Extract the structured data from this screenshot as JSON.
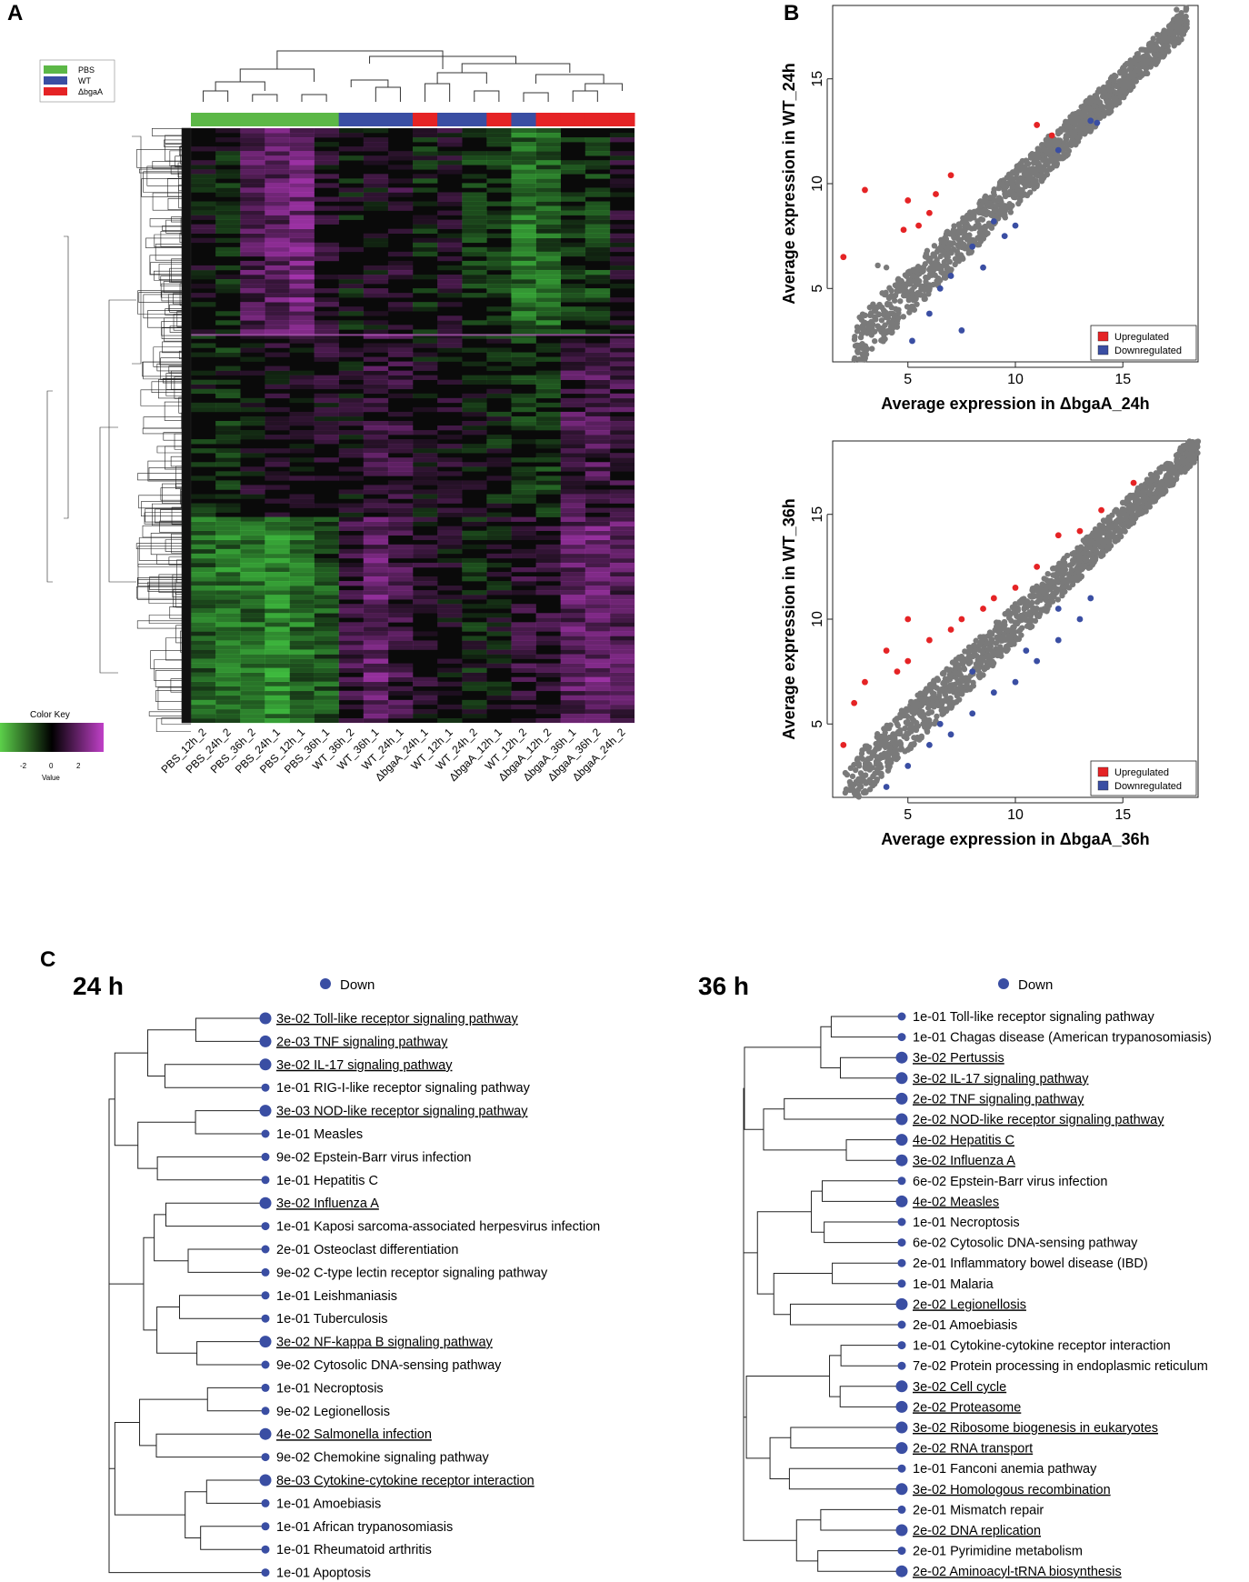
{
  "panels": {
    "a": "A",
    "b": "B",
    "c": "C"
  },
  "panel_a": {
    "legend": [
      {
        "label": "PBS",
        "color": "#5cb847"
      },
      {
        "label": "WT",
        "color": "#3a4ea3"
      },
      {
        "label": "ΔbgaA",
        "color": "#e52325"
      }
    ],
    "color_key": {
      "title": "Color Key",
      "value_label": "Value",
      "ticks": [
        "-2",
        "0",
        "2"
      ]
    },
    "samples": [
      "PBS_12h_2",
      "PBS_24h_2",
      "PBS_36h_2",
      "PBS_24h_1",
      "PBS_12h_1",
      "PBS_36h_1",
      "WT_36h_2",
      "WT_36h_1",
      "WT_24h_1",
      "ΔbgaA_24h_1",
      "WT_12h_1",
      "WT_24h_2",
      "ΔbgaA_12h_1",
      "WT_12h_2",
      "ΔbgaA_12h_2",
      "ΔbgaA_36h_1",
      "ΔbgaA_36h_2",
      "ΔbgaA_24h_2"
    ],
    "groups": [
      "PBS",
      "PBS",
      "PBS",
      "PBS",
      "PBS",
      "PBS",
      "WT",
      "WT",
      "WT",
      "ΔbgaA",
      "WT",
      "WT",
      "ΔbgaA",
      "WT",
      "ΔbgaA",
      "ΔbgaA",
      "ΔbgaA",
      "ΔbgaA"
    ]
  },
  "chart_data": [
    {
      "type": "scatter",
      "title": "",
      "xlabel": "Average expression in ΔbgaA_24h",
      "ylabel": "Average expression in WT_24h",
      "xlim": [
        1.5,
        18.5
      ],
      "ylim": [
        1.5,
        18.5
      ],
      "xticks": [
        "5",
        "10",
        "15"
      ],
      "yticks": [
        "5",
        "10",
        "15"
      ],
      "legend": [
        "Upregulated",
        "Downregulated"
      ],
      "legend_colors": [
        "#e52325",
        "#3a4ea3"
      ],
      "series": [
        {
          "name": "Upregulated",
          "points": [
            [
              2,
              6.5
            ],
            [
              3,
              9.7
            ],
            [
              5,
              9.2
            ],
            [
              6,
              8.6
            ],
            [
              6.3,
              9.5
            ],
            [
              5.5,
              8
            ],
            [
              7,
              10.4
            ],
            [
              11,
              12.8
            ],
            [
              11.7,
              12.3
            ],
            [
              4.8,
              7.8
            ]
          ]
        },
        {
          "name": "Downregulated",
          "points": [
            [
              5.2,
              2.5
            ],
            [
              7.5,
              3
            ],
            [
              6,
              3.8
            ],
            [
              7,
              5.6
            ],
            [
              8,
              7
            ],
            [
              9,
              8.2
            ],
            [
              10,
              8
            ],
            [
              12,
              11.6
            ],
            [
              13.5,
              13
            ],
            [
              13.8,
              12.9
            ],
            [
              8.5,
              6
            ],
            [
              9.5,
              7.5
            ],
            [
              6.5,
              5
            ]
          ]
        },
        {
          "name": "Background",
          "band": [
            [
              2.5,
              3.5
            ],
            [
              18,
              18
            ]
          ],
          "extremes": [
            [
              17.5,
              18.3
            ],
            [
              17,
              16.8
            ],
            [
              16.5,
              16.4
            ],
            [
              16.3,
              16.7
            ],
            [
              4,
              6
            ],
            [
              3.6,
              6.1
            ]
          ]
        }
      ]
    },
    {
      "type": "scatter",
      "title": "",
      "xlabel": "Average expression in ΔbgaA_36h",
      "ylabel": "Average expression in WT_36h",
      "xlim": [
        1.5,
        18.5
      ],
      "ylim": [
        1.5,
        18.5
      ],
      "xticks": [
        "5",
        "10",
        "15"
      ],
      "yticks": [
        "5",
        "10",
        "15"
      ],
      "legend": [
        "Upregulated",
        "Downregulated"
      ],
      "legend_colors": [
        "#e52325",
        "#3a4ea3"
      ],
      "series": [
        {
          "name": "Upregulated",
          "points": [
            [
              2,
              4
            ],
            [
              2.5,
              6
            ],
            [
              3,
              7
            ],
            [
              4,
              8.5
            ],
            [
              5,
              8
            ],
            [
              6,
              9
            ],
            [
              7,
              9.5
            ],
            [
              7.5,
              10
            ],
            [
              8.5,
              10.5
            ],
            [
              9,
              11
            ],
            [
              10,
              11.5
            ],
            [
              11,
              12.5
            ],
            [
              12,
              14
            ],
            [
              13,
              14.2
            ],
            [
              14,
              15.2
            ],
            [
              15.5,
              16.5
            ],
            [
              5,
              10
            ],
            [
              4.5,
              7.5
            ]
          ]
        },
        {
          "name": "Downregulated",
          "points": [
            [
              4,
              2
            ],
            [
              5,
              3
            ],
            [
              6,
              4
            ],
            [
              7,
              4.5
            ],
            [
              8,
              5.5
            ],
            [
              9,
              6.5
            ],
            [
              10,
              7
            ],
            [
              11,
              8
            ],
            [
              12,
              9
            ],
            [
              13,
              10
            ],
            [
              13.5,
              11
            ],
            [
              12,
              10.5
            ],
            [
              8,
              7.5
            ],
            [
              6.5,
              5
            ],
            [
              10.5,
              8.5
            ]
          ]
        },
        {
          "name": "Background",
          "band": [
            [
              2,
              3
            ],
            [
              18.5,
              18.5
            ]
          ],
          "extremes": [
            [
              18.3,
              18.3
            ],
            [
              17.5,
              17.5
            ],
            [
              16.5,
              16.8
            ],
            [
              16.3,
              16.9
            ]
          ]
        }
      ]
    }
  ],
  "panel_c": {
    "legend_label": "Down",
    "left": {
      "title": "24 h",
      "items": [
        {
          "label": "3e-02 Toll-like receptor signaling pathway",
          "big": true,
          "underline": true
        },
        {
          "label": "2e-03 TNF signaling pathway",
          "big": true,
          "underline": true
        },
        {
          "label": "3e-02 IL-17 signaling pathway",
          "big": true,
          "underline": true
        },
        {
          "label": "1e-01 RIG-I-like receptor signaling pathway",
          "big": false,
          "underline": false
        },
        {
          "label": "3e-03 NOD-like receptor signaling pathway",
          "big": true,
          "underline": true
        },
        {
          "label": "1e-01 Measles",
          "big": false,
          "underline": false
        },
        {
          "label": "9e-02 Epstein-Barr virus infection",
          "big": false,
          "underline": false
        },
        {
          "label": "1e-01 Hepatitis C",
          "big": false,
          "underline": false
        },
        {
          "label": "3e-02 Influenza A",
          "big": true,
          "underline": true
        },
        {
          "label": "1e-01 Kaposi sarcoma-associated herpesvirus infection",
          "big": false,
          "underline": false
        },
        {
          "label": "2e-01 Osteoclast differentiation",
          "big": false,
          "underline": false
        },
        {
          "label": "9e-02 C-type lectin receptor signaling pathway",
          "big": false,
          "underline": false
        },
        {
          "label": "1e-01 Leishmaniasis",
          "big": false,
          "underline": false
        },
        {
          "label": "1e-01 Tuberculosis",
          "big": false,
          "underline": false
        },
        {
          "label": "3e-02 NF-kappa B signaling pathway",
          "big": true,
          "underline": true
        },
        {
          "label": "9e-02 Cytosolic DNA-sensing pathway",
          "big": false,
          "underline": false
        },
        {
          "label": "1e-01 Necroptosis",
          "big": false,
          "underline": false
        },
        {
          "label": "9e-02 Legionellosis",
          "big": false,
          "underline": false
        },
        {
          "label": "4e-02 Salmonella infection",
          "big": true,
          "underline": true
        },
        {
          "label": "9e-02 Chemokine signaling pathway",
          "big": false,
          "underline": false
        },
        {
          "label": "8e-03 Cytokine-cytokine receptor interaction",
          "big": true,
          "underline": true
        },
        {
          "label": "1e-01 Amoebiasis",
          "big": false,
          "underline": false
        },
        {
          "label": "1e-01 African trypanosomiasis",
          "big": false,
          "underline": false
        },
        {
          "label": "1e-01 Rheumatoid arthritis",
          "big": false,
          "underline": false
        },
        {
          "label": "1e-01 Apoptosis",
          "big": false,
          "underline": false
        }
      ]
    },
    "right": {
      "title": "36 h",
      "items": [
        {
          "label": "1e-01 Toll-like receptor signaling pathway",
          "big": false,
          "underline": false
        },
        {
          "label": "1e-01 Chagas disease (American trypanosomiasis)",
          "big": false,
          "underline": false
        },
        {
          "label": "3e-02 Pertussis",
          "big": true,
          "underline": true
        },
        {
          "label": "3e-02 IL-17 signaling pathway",
          "big": true,
          "underline": true
        },
        {
          "label": "2e-02 TNF signaling pathway",
          "big": true,
          "underline": true
        },
        {
          "label": "2e-02 NOD-like receptor signaling pathway",
          "big": true,
          "underline": true
        },
        {
          "label": "4e-02 Hepatitis C",
          "big": true,
          "underline": true
        },
        {
          "label": "3e-02 Influenza A",
          "big": true,
          "underline": true
        },
        {
          "label": "6e-02 Epstein-Barr virus infection",
          "big": false,
          "underline": false
        },
        {
          "label": "4e-02 Measles",
          "big": true,
          "underline": true
        },
        {
          "label": "1e-01 Necroptosis",
          "big": false,
          "underline": false
        },
        {
          "label": "6e-02 Cytosolic DNA-sensing pathway",
          "big": false,
          "underline": false
        },
        {
          "label": "2e-01 Inflammatory bowel disease (IBD)",
          "big": false,
          "underline": false
        },
        {
          "label": "1e-01 Malaria",
          "big": false,
          "underline": false
        },
        {
          "label": "2e-02 Legionellosis",
          "big": true,
          "underline": true
        },
        {
          "label": "2e-01 Amoebiasis",
          "big": false,
          "underline": false
        },
        {
          "label": "1e-01 Cytokine-cytokine receptor interaction",
          "big": false,
          "underline": false
        },
        {
          "label": "7e-02 Protein processing in endoplasmic reticulum",
          "big": false,
          "underline": false
        },
        {
          "label": "3e-02 Cell cycle",
          "big": true,
          "underline": true
        },
        {
          "label": "2e-02 Proteasome",
          "big": true,
          "underline": true
        },
        {
          "label": "3e-02 Ribosome biogenesis in eukaryotes",
          "big": true,
          "underline": true
        },
        {
          "label": "2e-02 RNA transport",
          "big": true,
          "underline": true
        },
        {
          "label": "1e-01 Fanconi anemia pathway",
          "big": false,
          "underline": false
        },
        {
          "label": "3e-02 Homologous recombination",
          "big": true,
          "underline": true
        },
        {
          "label": "2e-01 Mismatch repair",
          "big": false,
          "underline": false
        },
        {
          "label": "2e-02 DNA replication",
          "big": true,
          "underline": true
        },
        {
          "label": "2e-01 Pyrimidine metabolism",
          "big": false,
          "underline": false
        },
        {
          "label": "2e-02 Aminoacyl-tRNA biosynthesis",
          "big": true,
          "underline": true
        }
      ]
    }
  },
  "colors": {
    "dot": "#3a4ea3",
    "gray": "#7a7a7a"
  }
}
